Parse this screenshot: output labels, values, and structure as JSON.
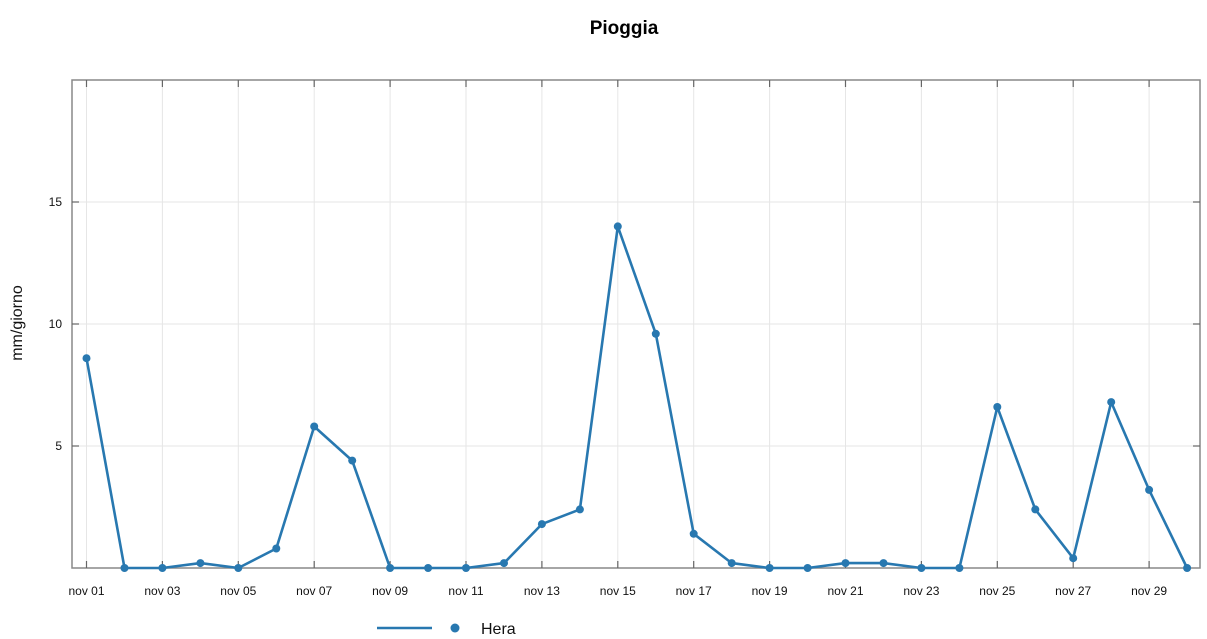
{
  "chart_data": {
    "type": "line",
    "title": "Pioggia",
    "xlabel": "",
    "ylabel": "mm/giorno",
    "x": [
      "nov 01",
      "nov 02",
      "nov 03",
      "nov 04",
      "nov 05",
      "nov 06",
      "nov 07",
      "nov 08",
      "nov 09",
      "nov 10",
      "nov 11",
      "nov 12",
      "nov 13",
      "nov 14",
      "nov 15",
      "nov 16",
      "nov 17",
      "nov 18",
      "nov 19",
      "nov 20",
      "nov 21",
      "nov 22",
      "nov 23",
      "nov 24",
      "nov 25",
      "nov 26",
      "nov 27",
      "nov 28",
      "nov 29",
      "nov 30"
    ],
    "x_tick_labels": [
      "nov 01",
      "nov 03",
      "nov 05",
      "nov 07",
      "nov 09",
      "nov 11",
      "nov 13",
      "nov 15",
      "nov 17",
      "nov 19",
      "nov 21",
      "nov 23",
      "nov 25",
      "nov 27",
      "nov 29"
    ],
    "y_ticks": [
      5,
      10,
      15
    ],
    "ylim": [
      0,
      20
    ],
    "grid": true,
    "legend_position": "bottom",
    "series": [
      {
        "name": "Hera",
        "color": "#2878b0",
        "values": [
          8.6,
          0,
          0,
          0.2,
          0,
          0.8,
          5.8,
          4.4,
          0,
          0,
          0,
          0.2,
          1.8,
          2.4,
          14.0,
          9.6,
          1.4,
          0.2,
          0,
          0,
          0.2,
          0.2,
          0,
          0,
          6.6,
          2.4,
          0.4,
          6.8,
          3.2,
          0
        ]
      }
    ]
  }
}
